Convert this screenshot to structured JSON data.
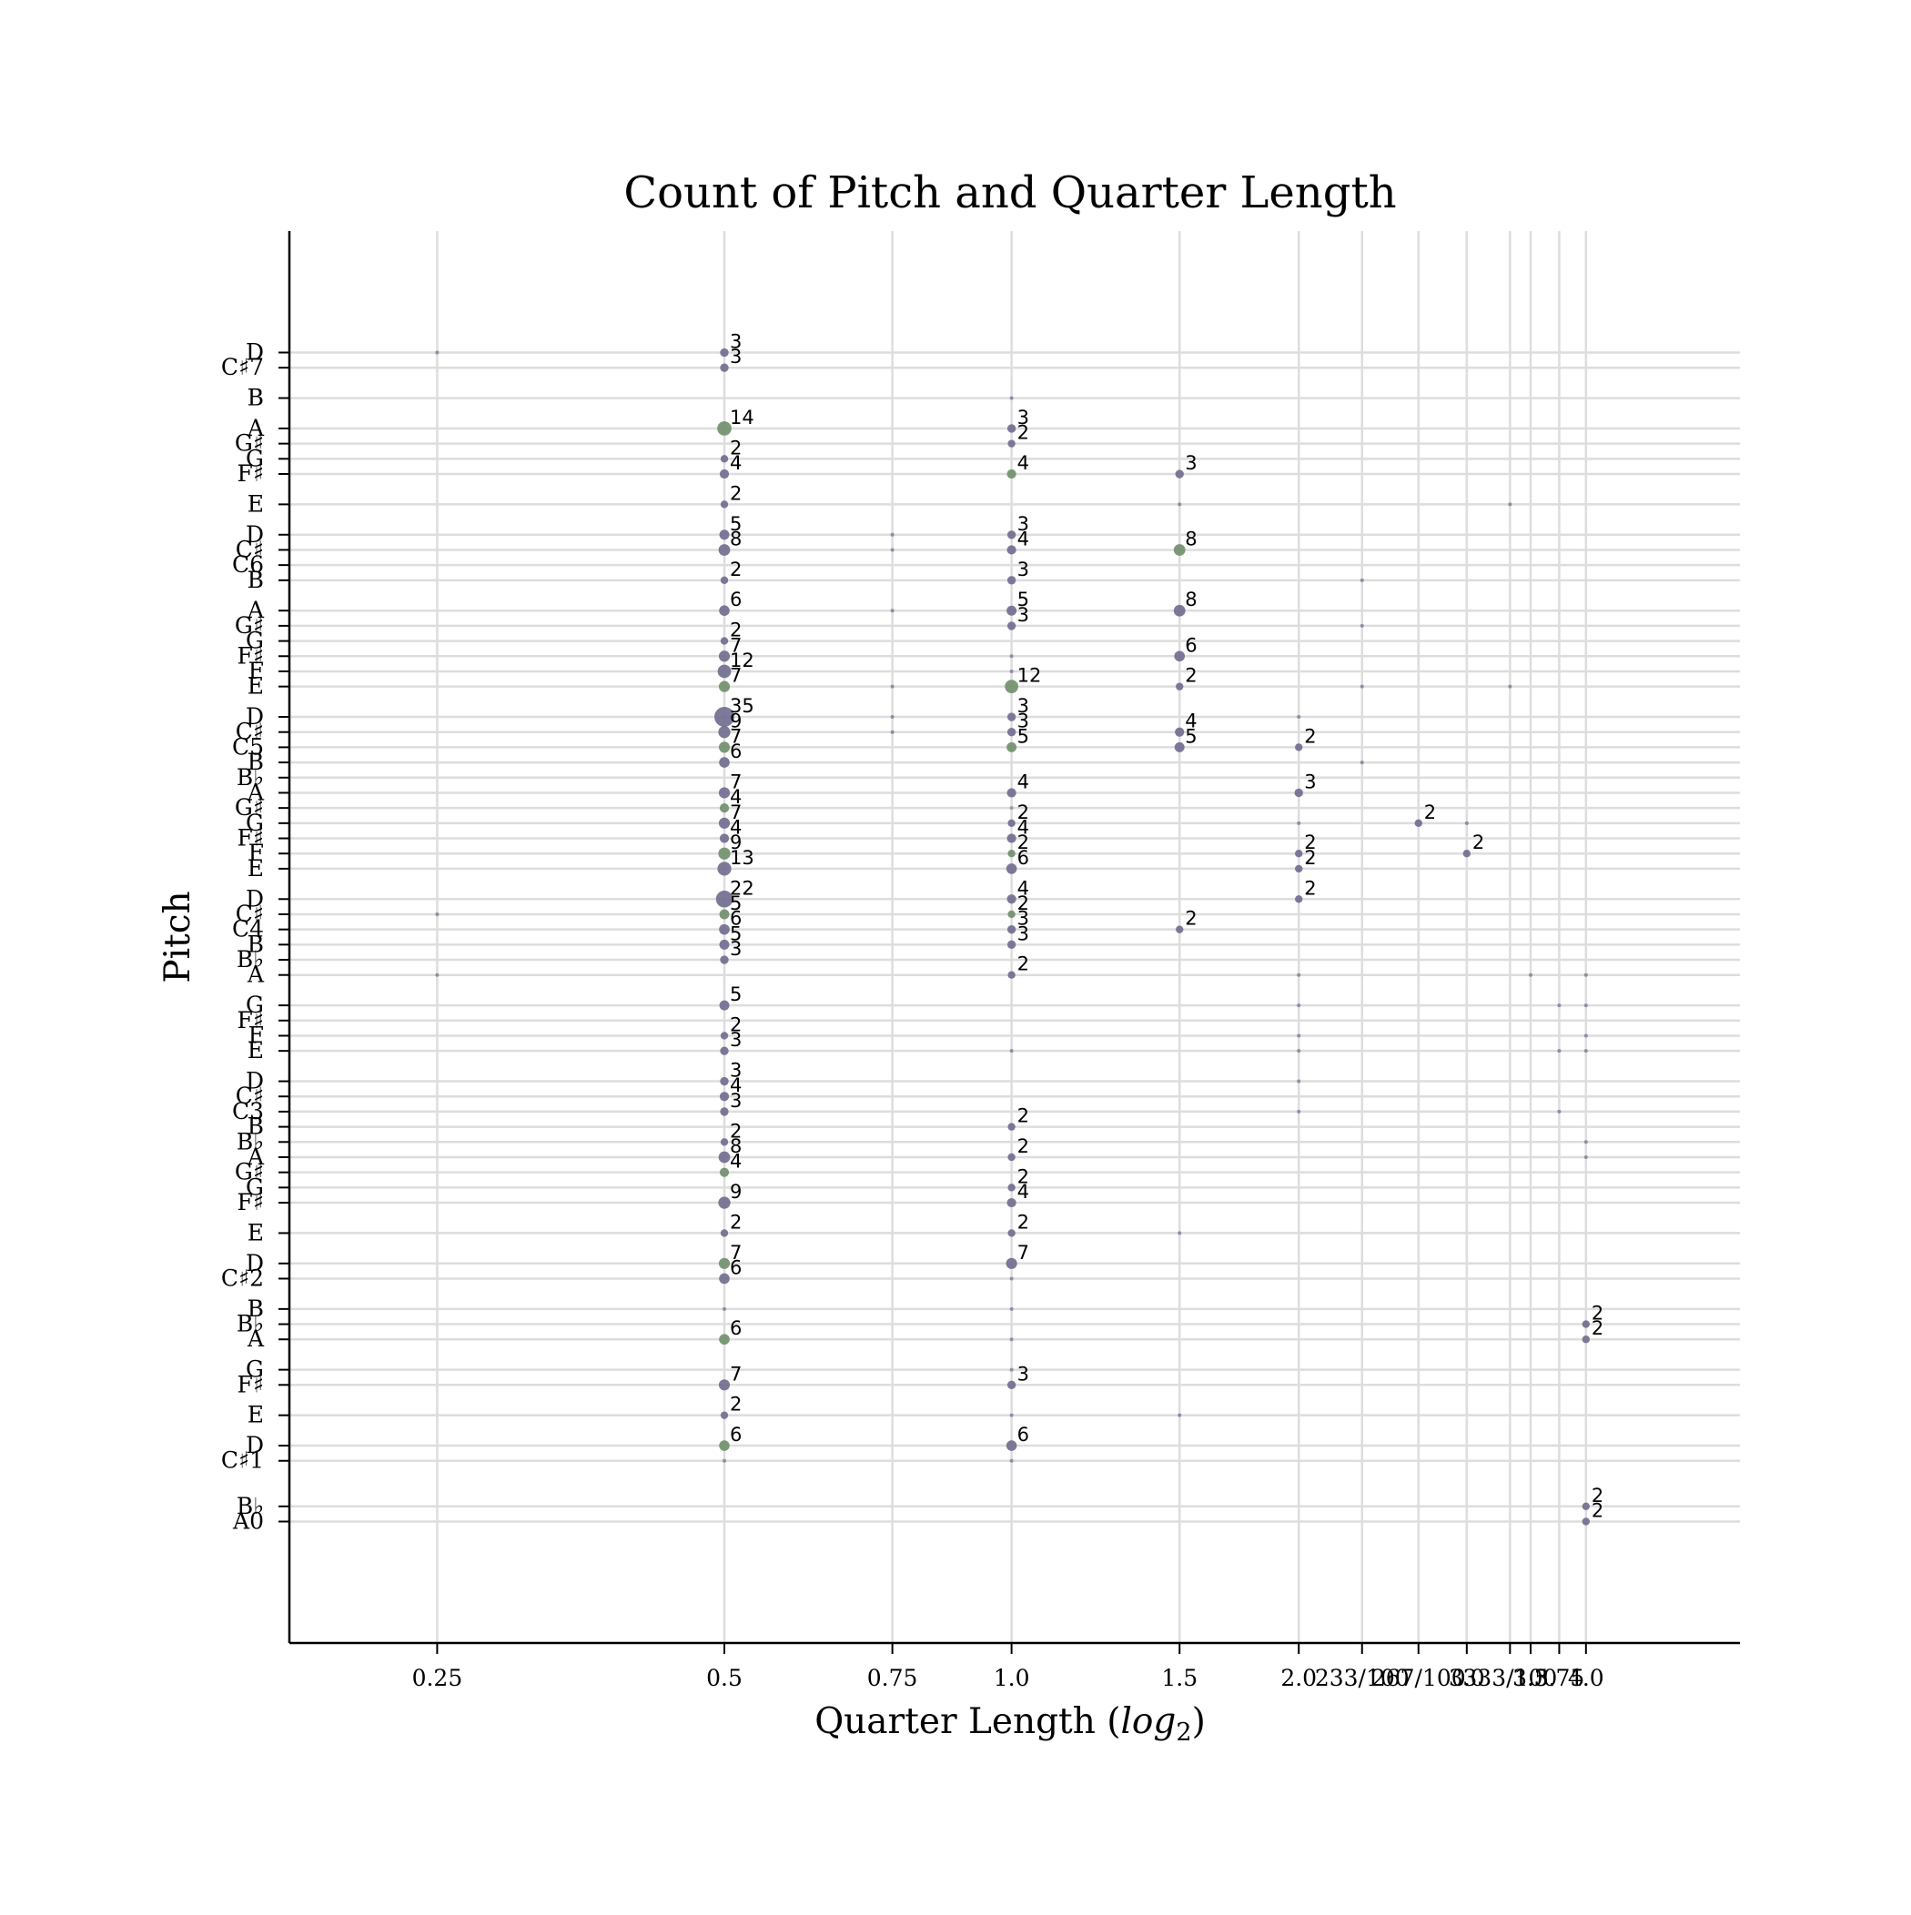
{
  "chart_data": {
    "type": "scatter",
    "title": "Count of Pitch and Quarter Length",
    "xlabel": "Quarter Length (log2)",
    "ylabel": "Pitch",
    "xscale": "log2",
    "grid": true,
    "colors": {
      "purple": "#6e6a8e",
      "green": "#6f8e6a",
      "grid": "#dddddd",
      "axis": "#000000"
    },
    "x_ticks": [
      {
        "value": 0.25,
        "label": "0.25"
      },
      {
        "value": 0.5,
        "label": "0.5"
      },
      {
        "value": 0.75,
        "label": "0.75"
      },
      {
        "value": 1.0,
        "label": "1.0"
      },
      {
        "value": 1.5,
        "label": "1.5"
      },
      {
        "value": 2.0,
        "label": "2.0"
      },
      {
        "value": 2.33,
        "label": "233/100"
      },
      {
        "value": 2.67,
        "label": "267/100"
      },
      {
        "value": 3.0,
        "label": "3.0"
      },
      {
        "value": 3.33,
        "label": "333/100"
      },
      {
        "value": 3.5,
        "label": "3.5"
      },
      {
        "value": 3.75,
        "label": "3.75"
      },
      {
        "value": 4.0,
        "label": "4.0"
      }
    ],
    "y_ticks": [
      {
        "midi": 21,
        "label": "A0"
      },
      {
        "midi": 22,
        "label": "B♭"
      },
      {
        "midi": 25,
        "label": "C♯1"
      },
      {
        "midi": 26,
        "label": "D"
      },
      {
        "midi": 28,
        "label": "E"
      },
      {
        "midi": 30,
        "label": "F♯"
      },
      {
        "midi": 31,
        "label": "G"
      },
      {
        "midi": 33,
        "label": "A"
      },
      {
        "midi": 34,
        "label": "B♭"
      },
      {
        "midi": 35,
        "label": "B"
      },
      {
        "midi": 37,
        "label": "C♯2"
      },
      {
        "midi": 38,
        "label": "D"
      },
      {
        "midi": 40,
        "label": "E"
      },
      {
        "midi": 42,
        "label": "F♯"
      },
      {
        "midi": 43,
        "label": "G"
      },
      {
        "midi": 44,
        "label": "G♯"
      },
      {
        "midi": 45,
        "label": "A"
      },
      {
        "midi": 46,
        "label": "B♭"
      },
      {
        "midi": 47,
        "label": "B"
      },
      {
        "midi": 48,
        "label": "C3"
      },
      {
        "midi": 49,
        "label": "C♯"
      },
      {
        "midi": 50,
        "label": "D"
      },
      {
        "midi": 52,
        "label": "E"
      },
      {
        "midi": 53,
        "label": "F"
      },
      {
        "midi": 54,
        "label": "F♯"
      },
      {
        "midi": 55,
        "label": "G"
      },
      {
        "midi": 57,
        "label": "A"
      },
      {
        "midi": 58,
        "label": "B♭"
      },
      {
        "midi": 59,
        "label": "B"
      },
      {
        "midi": 60,
        "label": "C4"
      },
      {
        "midi": 61,
        "label": "C♯"
      },
      {
        "midi": 62,
        "label": "D"
      },
      {
        "midi": 64,
        "label": "E"
      },
      {
        "midi": 65,
        "label": "F"
      },
      {
        "midi": 66,
        "label": "F♯"
      },
      {
        "midi": 67,
        "label": "G"
      },
      {
        "midi": 68,
        "label": "G♯"
      },
      {
        "midi": 69,
        "label": "A"
      },
      {
        "midi": 70,
        "label": "B♭"
      },
      {
        "midi": 71,
        "label": "B"
      },
      {
        "midi": 72,
        "label": "C5"
      },
      {
        "midi": 73,
        "label": "C♯"
      },
      {
        "midi": 74,
        "label": "D"
      },
      {
        "midi": 76,
        "label": "E"
      },
      {
        "midi": 77,
        "label": "F"
      },
      {
        "midi": 78,
        "label": "F♯"
      },
      {
        "midi": 79,
        "label": "G"
      },
      {
        "midi": 80,
        "label": "G♯"
      },
      {
        "midi": 81,
        "label": "A"
      },
      {
        "midi": 83,
        "label": "B"
      },
      {
        "midi": 84,
        "label": "C6"
      },
      {
        "midi": 85,
        "label": "C♯"
      },
      {
        "midi": 86,
        "label": "D"
      },
      {
        "midi": 88,
        "label": "E"
      },
      {
        "midi": 90,
        "label": "F♯"
      },
      {
        "midi": 91,
        "label": "G"
      },
      {
        "midi": 92,
        "label": "G♯"
      },
      {
        "midi": 93,
        "label": "A"
      },
      {
        "midi": 95,
        "label": "B"
      },
      {
        "midi": 97,
        "label": "C♯7"
      },
      {
        "midi": 98,
        "label": "D"
      }
    ],
    "ylim": [
      13,
      106
    ],
    "points": [
      {
        "x": 0.25,
        "y": 98,
        "count": 1,
        "c": "p"
      },
      {
        "x": 0.25,
        "y": 61,
        "count": 1,
        "c": "p"
      },
      {
        "x": 0.25,
        "y": 57,
        "count": 1,
        "c": "p"
      },
      {
        "x": 0.5,
        "y": 98,
        "count": 3,
        "c": "p",
        "label": "3"
      },
      {
        "x": 0.5,
        "y": 97,
        "count": 3,
        "c": "p",
        "label": "3"
      },
      {
        "x": 0.5,
        "y": 93,
        "count": 14,
        "c": "g",
        "label": "14"
      },
      {
        "x": 0.5,
        "y": 91,
        "count": 2,
        "c": "p",
        "label": "2"
      },
      {
        "x": 0.5,
        "y": 90,
        "count": 4,
        "c": "p",
        "label": "4"
      },
      {
        "x": 0.5,
        "y": 88,
        "count": 2,
        "c": "p",
        "label": "2"
      },
      {
        "x": 0.5,
        "y": 86,
        "count": 5,
        "c": "p",
        "label": "5"
      },
      {
        "x": 0.5,
        "y": 85,
        "count": 8,
        "c": "p",
        "label": "8"
      },
      {
        "x": 0.5,
        "y": 83,
        "count": 2,
        "c": "p",
        "label": "2"
      },
      {
        "x": 0.5,
        "y": 81,
        "count": 6,
        "c": "p",
        "label": "6"
      },
      {
        "x": 0.5,
        "y": 79,
        "count": 2,
        "c": "p",
        "label": "2"
      },
      {
        "x": 0.5,
        "y": 78,
        "count": 7,
        "c": "p",
        "label": "7"
      },
      {
        "x": 0.5,
        "y": 77,
        "count": 12,
        "c": "p",
        "label": "12"
      },
      {
        "x": 0.5,
        "y": 76,
        "count": 7,
        "c": "g",
        "label": "7"
      },
      {
        "x": 0.5,
        "y": 74,
        "count": 35,
        "c": "p",
        "label": "35"
      },
      {
        "x": 0.5,
        "y": 73,
        "count": 9,
        "c": "p",
        "label": "9"
      },
      {
        "x": 0.5,
        "y": 72,
        "count": 7,
        "c": "g",
        "label": "7"
      },
      {
        "x": 0.5,
        "y": 71,
        "count": 6,
        "c": "p",
        "label": "6"
      },
      {
        "x": 0.5,
        "y": 69,
        "count": 7,
        "c": "p",
        "label": "7"
      },
      {
        "x": 0.5,
        "y": 68,
        "count": 4,
        "c": "g",
        "label": "4"
      },
      {
        "x": 0.5,
        "y": 67,
        "count": 7,
        "c": "p",
        "label": "7"
      },
      {
        "x": 0.5,
        "y": 66,
        "count": 4,
        "c": "p",
        "label": "4"
      },
      {
        "x": 0.5,
        "y": 65,
        "count": 9,
        "c": "g",
        "label": "9"
      },
      {
        "x": 0.5,
        "y": 64,
        "count": 13,
        "c": "p",
        "label": "13"
      },
      {
        "x": 0.5,
        "y": 62,
        "count": 22,
        "c": "p",
        "label": "22"
      },
      {
        "x": 0.5,
        "y": 61,
        "count": 5,
        "c": "g",
        "label": "5"
      },
      {
        "x": 0.5,
        "y": 60,
        "count": 6,
        "c": "p",
        "label": "6"
      },
      {
        "x": 0.5,
        "y": 59,
        "count": 5,
        "c": "p",
        "label": "5"
      },
      {
        "x": 0.5,
        "y": 58,
        "count": 3,
        "c": "p",
        "label": "3"
      },
      {
        "x": 0.5,
        "y": 55,
        "count": 5,
        "c": "p",
        "label": "5"
      },
      {
        "x": 0.5,
        "y": 53,
        "count": 2,
        "c": "p",
        "label": "2"
      },
      {
        "x": 0.5,
        "y": 52,
        "count": 3,
        "c": "p",
        "label": "3"
      },
      {
        "x": 0.5,
        "y": 50,
        "count": 3,
        "c": "p",
        "label": "3"
      },
      {
        "x": 0.5,
        "y": 49,
        "count": 4,
        "c": "p",
        "label": "4"
      },
      {
        "x": 0.5,
        "y": 48,
        "count": 3,
        "c": "p",
        "label": "3"
      },
      {
        "x": 0.5,
        "y": 46,
        "count": 2,
        "c": "p",
        "label": "2"
      },
      {
        "x": 0.5,
        "y": 45,
        "count": 8,
        "c": "p",
        "label": "8"
      },
      {
        "x": 0.5,
        "y": 44,
        "count": 4,
        "c": "g",
        "label": "4"
      },
      {
        "x": 0.5,
        "y": 42,
        "count": 9,
        "c": "p",
        "label": "9"
      },
      {
        "x": 0.5,
        "y": 40,
        "count": 2,
        "c": "p",
        "label": "2"
      },
      {
        "x": 0.5,
        "y": 38,
        "count": 7,
        "c": "g",
        "label": "7"
      },
      {
        "x": 0.5,
        "y": 37,
        "count": 6,
        "c": "p",
        "label": "6"
      },
      {
        "x": 0.5,
        "y": 35,
        "count": 1,
        "c": "p"
      },
      {
        "x": 0.5,
        "y": 33,
        "count": 6,
        "c": "g",
        "label": "6"
      },
      {
        "x": 0.5,
        "y": 30,
        "count": 7,
        "c": "p",
        "label": "7"
      },
      {
        "x": 0.5,
        "y": 28,
        "count": 2,
        "c": "p",
        "label": "2"
      },
      {
        "x": 0.5,
        "y": 26,
        "count": 6,
        "c": "g",
        "label": "6"
      },
      {
        "x": 0.5,
        "y": 25,
        "count": 1,
        "c": "p"
      },
      {
        "x": 0.75,
        "y": 86,
        "count": 1,
        "c": "p"
      },
      {
        "x": 0.75,
        "y": 85,
        "count": 1,
        "c": "p"
      },
      {
        "x": 0.75,
        "y": 81,
        "count": 1,
        "c": "p"
      },
      {
        "x": 0.75,
        "y": 76,
        "count": 1,
        "c": "p"
      },
      {
        "x": 0.75,
        "y": 74,
        "count": 1,
        "c": "p"
      },
      {
        "x": 0.75,
        "y": 73,
        "count": 1,
        "c": "p"
      },
      {
        "x": 1.0,
        "y": 95,
        "count": 1,
        "c": "p"
      },
      {
        "x": 1.0,
        "y": 93,
        "count": 3,
        "c": "p",
        "label": "3"
      },
      {
        "x": 1.0,
        "y": 92,
        "count": 2,
        "c": "p",
        "label": "2"
      },
      {
        "x": 1.0,
        "y": 90,
        "count": 4,
        "c": "g",
        "label": "4"
      },
      {
        "x": 1.0,
        "y": 86,
        "count": 3,
        "c": "p",
        "label": "3"
      },
      {
        "x": 1.0,
        "y": 85,
        "count": 4,
        "c": "p",
        "label": "4"
      },
      {
        "x": 1.0,
        "y": 83,
        "count": 3,
        "c": "p",
        "label": "3"
      },
      {
        "x": 1.0,
        "y": 81,
        "count": 5,
        "c": "p",
        "label": "5"
      },
      {
        "x": 1.0,
        "y": 80,
        "count": 3,
        "c": "p",
        "label": "3"
      },
      {
        "x": 1.0,
        "y": 78,
        "count": 1,
        "c": "p"
      },
      {
        "x": 1.0,
        "y": 77,
        "count": 1,
        "c": "p"
      },
      {
        "x": 1.0,
        "y": 76,
        "count": 12,
        "c": "g",
        "label": "12"
      },
      {
        "x": 1.0,
        "y": 74,
        "count": 3,
        "c": "p",
        "label": "3"
      },
      {
        "x": 1.0,
        "y": 73,
        "count": 3,
        "c": "p",
        "label": "3"
      },
      {
        "x": 1.0,
        "y": 72,
        "count": 5,
        "c": "g",
        "label": "5"
      },
      {
        "x": 1.0,
        "y": 69,
        "count": 4,
        "c": "p",
        "label": "4"
      },
      {
        "x": 1.0,
        "y": 68,
        "count": 1,
        "c": "g"
      },
      {
        "x": 1.0,
        "y": 67,
        "count": 2,
        "c": "p",
        "label": "2"
      },
      {
        "x": 1.0,
        "y": 66,
        "count": 4,
        "c": "p",
        "label": "4"
      },
      {
        "x": 1.0,
        "y": 65,
        "count": 2,
        "c": "g",
        "label": "2"
      },
      {
        "x": 1.0,
        "y": 64,
        "count": 6,
        "c": "p",
        "label": "6"
      },
      {
        "x": 1.0,
        "y": 62,
        "count": 4,
        "c": "p",
        "label": "4"
      },
      {
        "x": 1.0,
        "y": 61,
        "count": 2,
        "c": "g",
        "label": "2"
      },
      {
        "x": 1.0,
        "y": 60,
        "count": 3,
        "c": "p",
        "label": "3"
      },
      {
        "x": 1.0,
        "y": 59,
        "count": 3,
        "c": "p",
        "label": "3"
      },
      {
        "x": 1.0,
        "y": 57,
        "count": 2,
        "c": "p",
        "label": "2"
      },
      {
        "x": 1.0,
        "y": 52,
        "count": 1,
        "c": "p"
      },
      {
        "x": 1.0,
        "y": 47,
        "count": 2,
        "c": "p",
        "label": "2"
      },
      {
        "x": 1.0,
        "y": 45,
        "count": 2,
        "c": "p",
        "label": "2"
      },
      {
        "x": 1.0,
        "y": 43,
        "count": 2,
        "c": "p",
        "label": "2"
      },
      {
        "x": 1.0,
        "y": 42,
        "count": 4,
        "c": "p",
        "label": "4"
      },
      {
        "x": 1.0,
        "y": 40,
        "count": 2,
        "c": "p",
        "label": "2"
      },
      {
        "x": 1.0,
        "y": 38,
        "count": 7,
        "c": "p",
        "label": "7"
      },
      {
        "x": 1.0,
        "y": 37,
        "count": 1,
        "c": "p"
      },
      {
        "x": 1.0,
        "y": 35,
        "count": 1,
        "c": "p"
      },
      {
        "x": 1.0,
        "y": 33,
        "count": 1,
        "c": "p"
      },
      {
        "x": 1.0,
        "y": 31,
        "count": 1,
        "c": "p"
      },
      {
        "x": 1.0,
        "y": 30,
        "count": 3,
        "c": "p",
        "label": "3"
      },
      {
        "x": 1.0,
        "y": 28,
        "count": 1,
        "c": "p"
      },
      {
        "x": 1.0,
        "y": 26,
        "count": 6,
        "c": "p",
        "label": "6"
      },
      {
        "x": 1.0,
        "y": 25,
        "count": 1,
        "c": "p"
      },
      {
        "x": 1.5,
        "y": 90,
        "count": 3,
        "c": "p",
        "label": "3"
      },
      {
        "x": 1.5,
        "y": 88,
        "count": 1,
        "c": "p"
      },
      {
        "x": 1.5,
        "y": 85,
        "count": 8,
        "c": "g",
        "label": "8"
      },
      {
        "x": 1.5,
        "y": 81,
        "count": 8,
        "c": "p",
        "label": "8"
      },
      {
        "x": 1.5,
        "y": 78,
        "count": 6,
        "c": "p",
        "label": "6"
      },
      {
        "x": 1.5,
        "y": 76,
        "count": 2,
        "c": "p",
        "label": "2"
      },
      {
        "x": 1.5,
        "y": 73,
        "count": 4,
        "c": "p",
        "label": "4"
      },
      {
        "x": 1.5,
        "y": 72,
        "count": 5,
        "c": "p",
        "label": "5"
      },
      {
        "x": 1.5,
        "y": 60,
        "count": 2,
        "c": "p",
        "label": "2"
      },
      {
        "x": 1.5,
        "y": 40,
        "count": 1,
        "c": "p"
      },
      {
        "x": 1.5,
        "y": 28,
        "count": 1,
        "c": "p"
      },
      {
        "x": 2.0,
        "y": 74,
        "count": 1,
        "c": "p"
      },
      {
        "x": 2.0,
        "y": 72,
        "count": 2,
        "c": "p",
        "label": "2"
      },
      {
        "x": 2.0,
        "y": 69,
        "count": 3,
        "c": "p",
        "label": "3"
      },
      {
        "x": 2.0,
        "y": 67,
        "count": 1,
        "c": "p"
      },
      {
        "x": 2.0,
        "y": 65,
        "count": 2,
        "c": "p",
        "label": "2"
      },
      {
        "x": 2.0,
        "y": 64,
        "count": 2,
        "c": "p",
        "label": "2"
      },
      {
        "x": 2.0,
        "y": 62,
        "count": 2,
        "c": "p",
        "label": "2"
      },
      {
        "x": 2.0,
        "y": 57,
        "count": 1,
        "c": "p"
      },
      {
        "x": 2.0,
        "y": 55,
        "count": 1,
        "c": "p"
      },
      {
        "x": 2.0,
        "y": 53,
        "count": 1,
        "c": "p"
      },
      {
        "x": 2.0,
        "y": 52,
        "count": 1,
        "c": "p"
      },
      {
        "x": 2.0,
        "y": 50,
        "count": 1,
        "c": "p"
      },
      {
        "x": 2.0,
        "y": 48,
        "count": 1,
        "c": "p"
      },
      {
        "x": 2.33,
        "y": 83,
        "count": 1,
        "c": "p"
      },
      {
        "x": 2.33,
        "y": 80,
        "count": 1,
        "c": "p"
      },
      {
        "x": 2.33,
        "y": 76,
        "count": 1,
        "c": "p"
      },
      {
        "x": 2.33,
        "y": 71,
        "count": 1,
        "c": "p"
      },
      {
        "x": 2.67,
        "y": 67,
        "count": 2,
        "c": "p",
        "label": "2"
      },
      {
        "x": 3.0,
        "y": 67,
        "count": 1,
        "c": "p"
      },
      {
        "x": 3.0,
        "y": 65,
        "count": 2,
        "c": "p",
        "label": "2"
      },
      {
        "x": 3.33,
        "y": 88,
        "count": 1,
        "c": "p"
      },
      {
        "x": 3.33,
        "y": 76,
        "count": 1,
        "c": "p"
      },
      {
        "x": 3.5,
        "y": 57,
        "count": 1,
        "c": "p"
      },
      {
        "x": 3.75,
        "y": 55,
        "count": 1,
        "c": "p"
      },
      {
        "x": 3.75,
        "y": 52,
        "count": 1,
        "c": "p"
      },
      {
        "x": 3.75,
        "y": 48,
        "count": 1,
        "c": "p"
      },
      {
        "x": 4.0,
        "y": 57,
        "count": 1,
        "c": "p"
      },
      {
        "x": 4.0,
        "y": 55,
        "count": 1,
        "c": "p"
      },
      {
        "x": 4.0,
        "y": 53,
        "count": 1,
        "c": "p"
      },
      {
        "x": 4.0,
        "y": 52,
        "count": 1,
        "c": "p"
      },
      {
        "x": 4.0,
        "y": 46,
        "count": 1,
        "c": "p"
      },
      {
        "x": 4.0,
        "y": 45,
        "count": 1,
        "c": "p"
      },
      {
        "x": 4.0,
        "y": 34,
        "count": 2,
        "c": "p",
        "label": "2"
      },
      {
        "x": 4.0,
        "y": 33,
        "count": 2,
        "c": "p",
        "label": "2"
      },
      {
        "x": 4.0,
        "y": 22,
        "count": 2,
        "c": "p",
        "label": "2"
      },
      {
        "x": 4.0,
        "y": 21,
        "count": 2,
        "c": "p",
        "label": "2"
      }
    ]
  }
}
